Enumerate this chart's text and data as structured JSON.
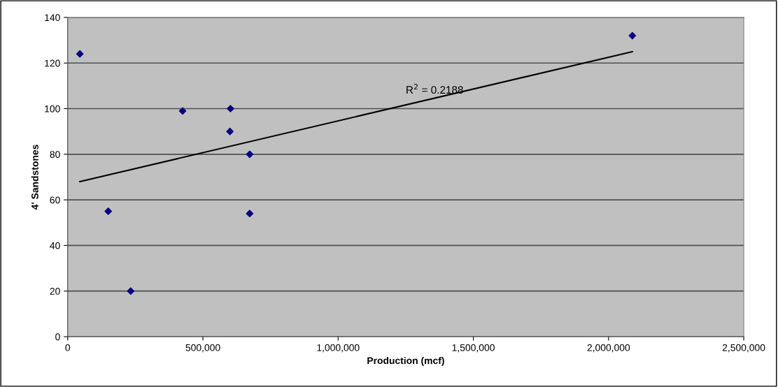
{
  "chart_data": {
    "type": "scatter",
    "xlabel": "Production (mcf)",
    "ylabel": "4' Sandstones",
    "xlim": [
      0,
      2500000
    ],
    "xticks": [
      {
        "value": 0,
        "label": "0"
      },
      {
        "value": 500000,
        "label": "500,000"
      },
      {
        "value": 1000000,
        "label": "1,000,000"
      },
      {
        "value": 1500000,
        "label": "1,500,000"
      },
      {
        "value": 2000000,
        "label": "2,000,000"
      },
      {
        "value": 2500000,
        "label": "2,500,000"
      }
    ],
    "ylim": [
      0,
      140
    ],
    "yticks": [
      0,
      20,
      40,
      60,
      80,
      100,
      120,
      140
    ],
    "grid": "y",
    "series": [
      {
        "marker": "diamond",
        "color": "#000080",
        "x": [
          45000,
          150000,
          233000,
          425000,
          602000,
          600000,
          673000,
          673000,
          2088000
        ],
        "values": [
          124,
          55,
          20,
          99,
          100,
          90,
          80,
          54,
          132
        ]
      },
      {
        "type": "line",
        "color": "#000000",
        "x": [
          45000,
          2088000
        ],
        "values": [
          68,
          125
        ]
      }
    ],
    "annotations": [
      "R$^{2}$ = 0.2188"
    ]
  }
}
